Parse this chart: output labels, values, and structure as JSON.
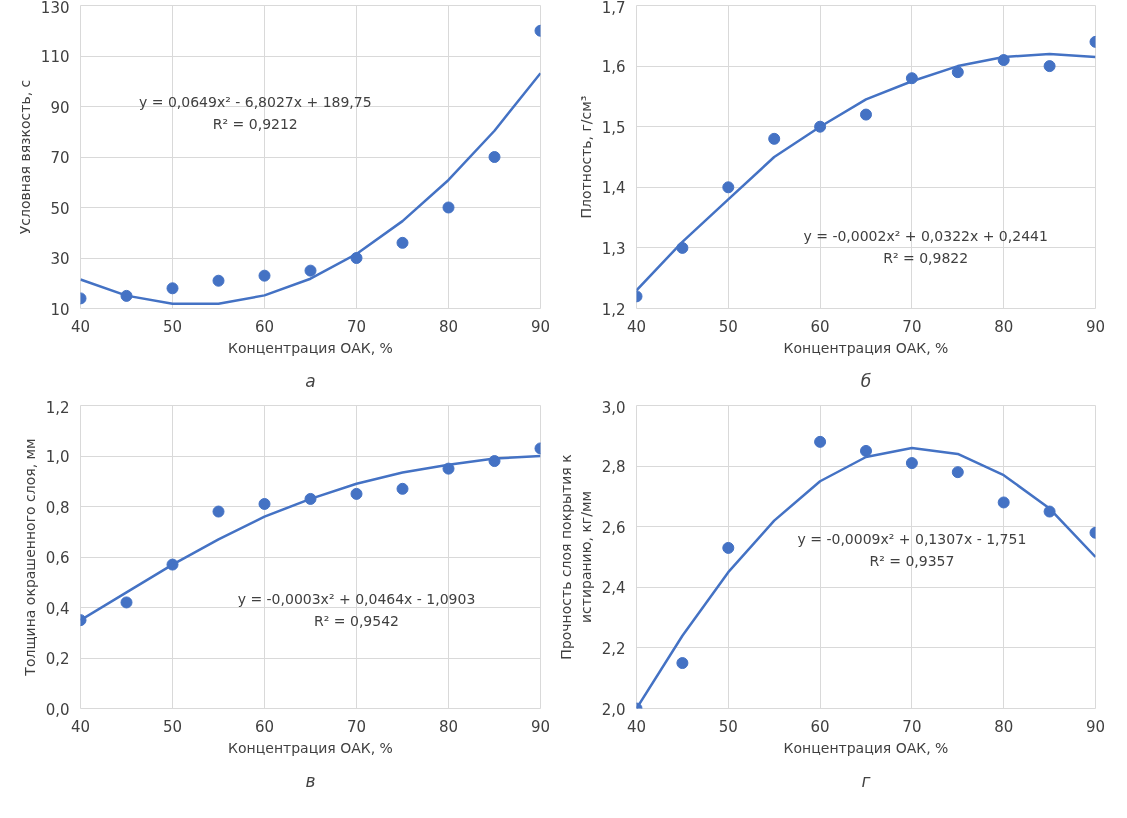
{
  "chart_data": [
    {
      "type": "scatter",
      "xlabel": "Концентрация ОАК, %",
      "ylabel": "Условная вязкость, с",
      "xlim": [
        40,
        90
      ],
      "ylim": [
        10,
        130
      ],
      "xticks": [
        40,
        50,
        60,
        70,
        80,
        90
      ],
      "yticks": [
        10,
        30,
        50,
        70,
        90,
        110,
        130
      ],
      "grid": true,
      "series": [
        {
          "color": "#4472c4",
          "marker": "circle",
          "x": [
            40,
            45,
            50,
            55,
            60,
            65,
            70,
            75,
            80,
            85,
            90
          ],
          "values": [
            14,
            15,
            18,
            21,
            23,
            25,
            30,
            36,
            50,
            70,
            120
          ]
        },
        {
          "type": "line",
          "marker": "none",
          "color": "#4472c4",
          "x": [
            40,
            45,
            50,
            55,
            60,
            65,
            70,
            75,
            80,
            85,
            90
          ],
          "values": [
            21.5,
            15.1,
            11.9,
            11.9,
            15.2,
            21.8,
            31.6,
            44.6,
            60.9,
            80.4,
            103.2
          ]
        }
      ],
      "annotations": [
        "y = 0,0649x² - 6,8027x + 189,75",
        "R² = 0,9212",
        "а"
      ]
    },
    {
      "type": "scatter",
      "xlabel": "Концентрация ОАК, %",
      "ylabel": "Плотность, г/см³",
      "xlim": [
        40,
        90
      ],
      "ylim": [
        1.2,
        1.7
      ],
      "xticks": [
        40,
        50,
        60,
        70,
        80,
        90
      ],
      "yticks": [
        {
          "value": 1.2,
          "label": "1,2"
        },
        {
          "value": 1.3,
          "label": "1,3"
        },
        {
          "value": 1.4,
          "label": "1,4"
        },
        {
          "value": 1.5,
          "label": "1,5"
        },
        {
          "value": 1.6,
          "label": "1,6"
        },
        {
          "value": 1.7,
          "label": "1,7"
        }
      ],
      "grid": true,
      "series": [
        {
          "color": "#4472c4",
          "marker": "circle",
          "x": [
            40,
            45,
            50,
            55,
            60,
            65,
            70,
            75,
            80,
            85,
            90
          ],
          "values": [
            1.22,
            1.3,
            1.4,
            1.48,
            1.5,
            1.52,
            1.58,
            1.59,
            1.61,
            1.6,
            1.64
          ]
        },
        {
          "type": "line",
          "marker": "none",
          "color": "#4472c4",
          "x": [
            40,
            45,
            50,
            55,
            60,
            65,
            70,
            75,
            80,
            85,
            90
          ],
          "values": [
            1.23,
            1.31,
            1.38,
            1.45,
            1.5,
            1.545,
            1.575,
            1.6,
            1.615,
            1.62,
            1.615
          ]
        }
      ],
      "annotations": [
        "y = -0,0002x² + 0,0322x + 0,2441",
        "R² = 0,9822",
        "б"
      ]
    },
    {
      "type": "scatter",
      "xlabel": "Концентрация ОАК, %",
      "ylabel": "Толщина окрашенного слоя, мм",
      "xlim": [
        40,
        90
      ],
      "ylim": [
        0,
        1.2
      ],
      "xticks": [
        40,
        50,
        60,
        70,
        80,
        90
      ],
      "yticks": [
        {
          "value": 0,
          "label": "0,0"
        },
        {
          "value": 0.2,
          "label": "0,2"
        },
        {
          "value": 0.4,
          "label": "0,4"
        },
        {
          "value": 0.6,
          "label": "0,6"
        },
        {
          "value": 0.8,
          "label": "0,8"
        },
        {
          "value": 1.0,
          "label": "1,0"
        },
        {
          "value": 1.2,
          "label": "1,2"
        }
      ],
      "grid": true,
      "series": [
        {
          "color": "#4472c4",
          "marker": "circle",
          "x": [
            40,
            45,
            50,
            55,
            60,
            65,
            70,
            75,
            80,
            85,
            90
          ],
          "values": [
            0.35,
            0.42,
            0.57,
            0.78,
            0.81,
            0.83,
            0.85,
            0.87,
            0.95,
            0.98,
            1.03
          ]
        },
        {
          "type": "line",
          "marker": "none",
          "color": "#4472c4",
          "x": [
            40,
            45,
            50,
            55,
            60,
            65,
            70,
            75,
            80,
            85,
            90
          ],
          "values": [
            0.35,
            0.46,
            0.57,
            0.67,
            0.76,
            0.83,
            0.89,
            0.935,
            0.965,
            0.99,
            1.0
          ]
        }
      ],
      "annotations": [
        "y = -0,0003x² + 0,0464x - 1,0903",
        "R² = 0,9542",
        "в"
      ]
    },
    {
      "type": "scatter",
      "xlabel": "Концентрация ОАК, %",
      "ylabel": "Прочность слоя покрытия к\nистиранию, кг/мм",
      "xlim": [
        40,
        90
      ],
      "ylim": [
        2.0,
        3.0
      ],
      "xticks": [
        40,
        50,
        60,
        70,
        80,
        90
      ],
      "yticks": [
        {
          "value": 2.0,
          "label": "2,0"
        },
        {
          "value": 2.2,
          "label": "2,2"
        },
        {
          "value": 2.4,
          "label": "2,4"
        },
        {
          "value": 2.6,
          "label": "2,6"
        },
        {
          "value": 2.8,
          "label": "2,8"
        },
        {
          "value": 3.0,
          "label": "3,0"
        }
      ],
      "grid": true,
      "series": [
        {
          "color": "#4472c4",
          "marker": "circle",
          "x": [
            40,
            45,
            50,
            60,
            65,
            70,
            75,
            80,
            85,
            90
          ],
          "values": [
            2.0,
            2.15,
            2.53,
            2.88,
            2.85,
            2.81,
            2.78,
            2.68,
            2.65,
            2.58
          ]
        },
        {
          "type": "line",
          "marker": "none",
          "color": "#4472c4",
          "x": [
            40,
            45,
            50,
            55,
            60,
            65,
            70,
            75,
            80,
            85,
            90
          ],
          "values": [
            2.0,
            2.24,
            2.45,
            2.62,
            2.75,
            2.83,
            2.86,
            2.84,
            2.77,
            2.66,
            2.5
          ]
        }
      ],
      "annotations": [
        "y = -0,0009x² + 0,1307x - 1,751",
        "R² = 0,9357",
        "г"
      ]
    }
  ]
}
